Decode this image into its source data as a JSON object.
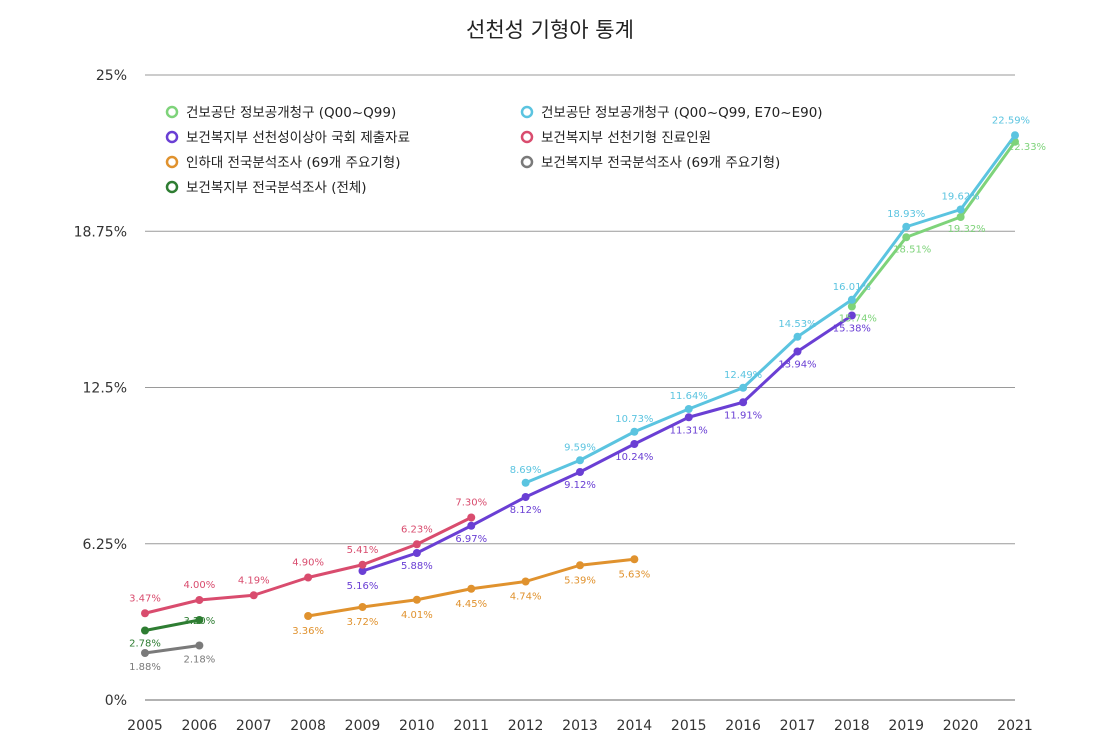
{
  "chart_data": {
    "type": "line",
    "title": "선천성 기형아 통계",
    "xlabel": "",
    "ylabel": "",
    "ylim": [
      0,
      25
    ],
    "xlim": [
      2005,
      2021
    ],
    "x_ticks": [
      "2005",
      "2006",
      "2007",
      "2008",
      "2009",
      "2010",
      "2011",
      "2012",
      "2013",
      "2014",
      "2015",
      "2016",
      "2017",
      "2018",
      "2019",
      "2020",
      "2021"
    ],
    "y_ticks": [
      {
        "value": 0,
        "label": "0%"
      },
      {
        "value": 6.25,
        "label": "6.25%"
      },
      {
        "value": 12.5,
        "label": "12.5%"
      },
      {
        "value": 18.75,
        "label": "18.75%"
      },
      {
        "value": 25,
        "label": "25%"
      }
    ],
    "grid": "horizontal",
    "legend_position": "top-left",
    "series": [
      {
        "name": "건보공단 정보공개청구 (Q00~Q99)",
        "color": "#7ed37a",
        "points": [
          {
            "x": 2018,
            "y": 15.74,
            "label": "15.74%"
          },
          {
            "x": 2019,
            "y": 18.51,
            "label": "18.51%"
          },
          {
            "x": 2020,
            "y": 19.32,
            "label": "19.32%"
          },
          {
            "x": 2021,
            "y": 22.33,
            "label": "22.33%"
          }
        ]
      },
      {
        "name": "건보공단 정보공개청구 (Q00~Q99, E70~E90)",
        "color": "#5bc4e0",
        "points": [
          {
            "x": 2012,
            "y": 8.69,
            "label": "8.69%"
          },
          {
            "x": 2013,
            "y": 9.59,
            "label": "9.59%"
          },
          {
            "x": 2014,
            "y": 10.73,
            "label": "10.73%"
          },
          {
            "x": 2015,
            "y": 11.64,
            "label": "11.64%"
          },
          {
            "x": 2016,
            "y": 12.49,
            "label": "12.49%"
          },
          {
            "x": 2017,
            "y": 14.53,
            "label": "14.53%"
          },
          {
            "x": 2018,
            "y": 16.01,
            "label": "16.01%"
          },
          {
            "x": 2019,
            "y": 18.93,
            "label": "18.93%"
          },
          {
            "x": 2020,
            "y": 19.62,
            "label": "19.62%"
          },
          {
            "x": 2021,
            "y": 22.59,
            "label": "22.59%"
          }
        ]
      },
      {
        "name": "보건복지부 선천성이상아 국회 제출자료",
        "color": "#6a3fd4",
        "points": [
          {
            "x": 2009,
            "y": 5.16,
            "label": "5.16%"
          },
          {
            "x": 2010,
            "y": 5.88,
            "label": "5.88%"
          },
          {
            "x": 2011,
            "y": 6.97,
            "label": "6.97%"
          },
          {
            "x": 2012,
            "y": 8.12,
            "label": "8.12%"
          },
          {
            "x": 2013,
            "y": 9.12,
            "label": "9.12%"
          },
          {
            "x": 2014,
            "y": 10.24,
            "label": "10.24%"
          },
          {
            "x": 2015,
            "y": 11.31,
            "label": "11.31%"
          },
          {
            "x": 2016,
            "y": 11.91,
            "label": "11.91%"
          },
          {
            "x": 2017,
            "y": 13.94,
            "label": "13.94%"
          },
          {
            "x": 2018,
            "y": 15.38,
            "label": "15.38%"
          }
        ]
      },
      {
        "name": "보건복지부 선천기형 진료인원",
        "color": "#d94c6e",
        "points": [
          {
            "x": 2005,
            "y": 3.47,
            "label": "3.47%"
          },
          {
            "x": 2006,
            "y": 4.0,
            "label": "4.00%"
          },
          {
            "x": 2007,
            "y": 4.19,
            "label": "4.19%"
          },
          {
            "x": 2008,
            "y": 4.9,
            "label": "4.90%"
          },
          {
            "x": 2009,
            "y": 5.41,
            "label": "5.41%"
          },
          {
            "x": 2010,
            "y": 6.23,
            "label": "6.23%"
          },
          {
            "x": 2011,
            "y": 7.3,
            "label": "7.30%"
          }
        ]
      },
      {
        "name": "인하대 전국분석조사 (69개 주요기형)",
        "color": "#e0922e",
        "points": [
          {
            "x": 2008,
            "y": 3.36,
            "label": "3.36%"
          },
          {
            "x": 2009,
            "y": 3.72,
            "label": "3.72%"
          },
          {
            "x": 2010,
            "y": 4.01,
            "label": "4.01%"
          },
          {
            "x": 2011,
            "y": 4.45,
            "label": "4.45%"
          },
          {
            "x": 2012,
            "y": 4.74,
            "label": "4.74%"
          },
          {
            "x": 2013,
            "y": 5.39,
            "label": "5.39%"
          },
          {
            "x": 2014,
            "y": 5.63,
            "label": "5.63%"
          }
        ]
      },
      {
        "name": "보건복지부 전국분석조사 (69개 주요기형)",
        "color": "#7a7a7a",
        "points": [
          {
            "x": 2005,
            "y": 1.88,
            "label": "1.88%"
          },
          {
            "x": 2006,
            "y": 2.18,
            "label": "2.18%"
          }
        ]
      },
      {
        "name": "보건복지부 전국분석조사 (전체)",
        "color": "#2e7d32",
        "points": [
          {
            "x": 2005,
            "y": 2.78,
            "label": "2.78%"
          },
          {
            "x": 2006,
            "y": 3.2,
            "label": "3.20%"
          }
        ]
      }
    ]
  }
}
